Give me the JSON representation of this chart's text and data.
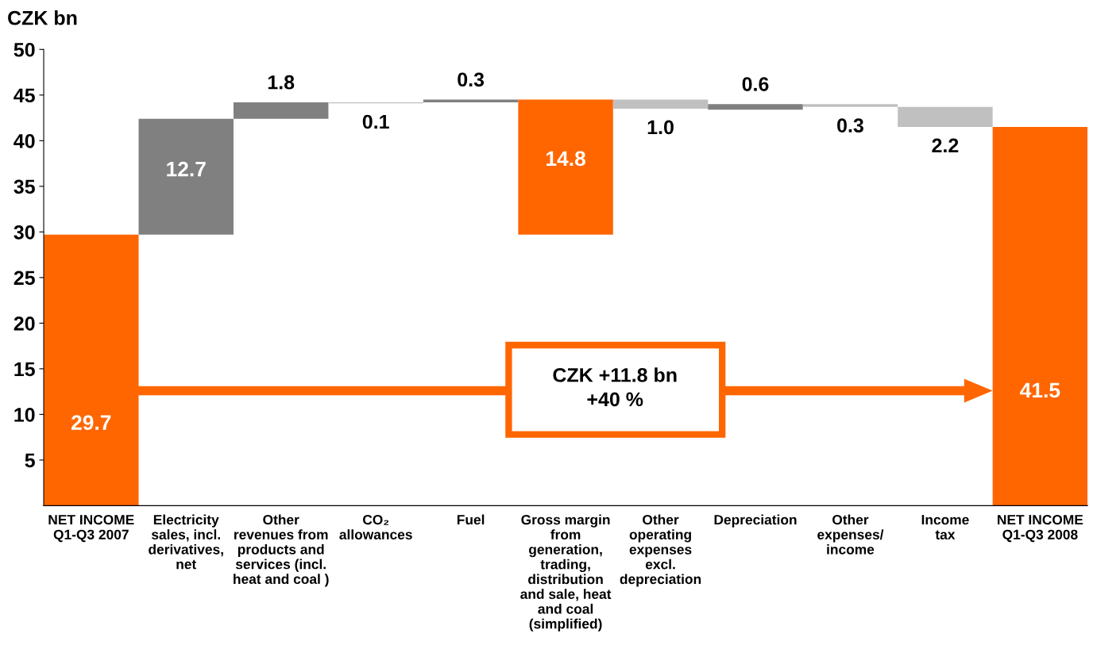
{
  "chart_data": {
    "type": "bar",
    "ylabel": "CZK bn",
    "categories": [
      "NET INCOME\nQ1-Q3 2007",
      "Electricity\nsales, incl.\nderivatives,\nnet",
      "Other\nrevenues from\nproducts and\nservices (incl.\nheat and coal )",
      "CO₂\nallowances",
      "Fuel",
      "Gross margin\nfrom\ngeneration,\ntrading,\ndistribution\nand sale, heat\nand coal\n(simplified)",
      "Other\noperating\nexpenses\nexcl.\ndepreciation",
      "Depreciation",
      "Other\nexpenses/\nincome",
      "Income\ntax",
      "NET INCOME\nQ1-Q3 2008"
    ],
    "values": [
      29.7,
      12.7,
      1.8,
      0.1,
      0.3,
      14.8,
      1.0,
      0.6,
      0.3,
      2.2,
      41.5
    ],
    "base": [
      0,
      29.7,
      42.4,
      44.1,
      44.2,
      29.7,
      43.5,
      43.4,
      43.7,
      41.5,
      0
    ],
    "colors": [
      "#ff6600",
      "#808080",
      "#808080",
      "#c0c0c0",
      "#808080",
      "#ff6600",
      "#c0c0c0",
      "#808080",
      "#c0c0c0",
      "#c0c0c0",
      "#ff6600"
    ],
    "value_labels": [
      "29.7",
      "12.7",
      "1.8",
      "0.1",
      "0.3",
      "14.8",
      "1.0",
      "0.6",
      "0.3",
      "2.2",
      "41.5"
    ],
    "ylim": [
      0,
      50
    ],
    "yticks": [
      5,
      10,
      15,
      20,
      25,
      30,
      35,
      40,
      45,
      50
    ],
    "grid": false,
    "legend": false,
    "annotations": [
      "CZK +11.8 bn\n+40 %"
    ]
  }
}
